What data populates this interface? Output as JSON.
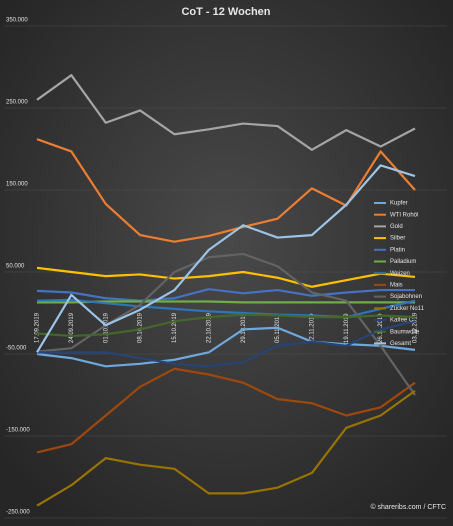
{
  "chart_data": {
    "type": "line",
    "title": "CoT - 12 Wochen",
    "source": "© shareribs.com / CFTC",
    "categories": [
      "17.09.2019",
      "24.09.2019",
      "01.10.2019",
      "08.10.2019",
      "15.10.2019",
      "22.10.2019",
      "29.10.2019",
      "05.11.2019",
      "12.11.2019",
      "19.11.2019",
      "26.11.2019",
      "03.12.2019"
    ],
    "ylim": [
      -250000,
      350000
    ],
    "yticks": [
      {
        "value": -250000,
        "label": "-250.000"
      },
      {
        "value": -150000,
        "label": "-150.000"
      },
      {
        "value": -50000,
        "label": "-50.000"
      },
      {
        "value": 50000,
        "label": "50.000"
      },
      {
        "value": 150000,
        "label": "150.000"
      },
      {
        "value": 250000,
        "label": "250.000"
      },
      {
        "value": 350000,
        "label": "350.000"
      }
    ],
    "grid": true,
    "legend": "right",
    "series": [
      {
        "name": "Kupfer",
        "color": "#6fa8dc",
        "values": [
          -50000,
          -55000,
          -65000,
          -62000,
          -57000,
          -48000,
          -20000,
          -18000,
          -35000,
          -38000,
          -40000,
          -45000
        ]
      },
      {
        "name": "WTI Rohöl",
        "color": "#ed7d31",
        "values": [
          212000,
          197000,
          133000,
          95000,
          87000,
          94000,
          105000,
          115000,
          152000,
          131000,
          197000,
          150000
        ]
      },
      {
        "name": "Gold",
        "color": "#a5a5a5",
        "values": [
          260000,
          290000,
          232000,
          247000,
          218000,
          224000,
          231000,
          228000,
          199000,
          223000,
          203000,
          225000
        ]
      },
      {
        "name": "Silber",
        "color": "#ffc000",
        "values": [
          55000,
          50000,
          45000,
          47000,
          42000,
          45000,
          50000,
          43000,
          32000,
          40000,
          48000,
          44000
        ]
      },
      {
        "name": "Platin",
        "color": "#4472c4",
        "values": [
          27000,
          25000,
          18000,
          15000,
          18000,
          29000,
          24000,
          28000,
          21000,
          25000,
          28000,
          28000
        ]
      },
      {
        "name": "Palladium",
        "color": "#70ad47",
        "values": [
          13000,
          13000,
          14000,
          14000,
          14000,
          14000,
          13000,
          13000,
          13000,
          13000,
          13000,
          13000
        ]
      },
      {
        "name": "Weizen",
        "color": "#2e75b6",
        "values": [
          15000,
          16000,
          12000,
          8000,
          5000,
          2000,
          0,
          -2000,
          -3000,
          -5000,
          5000,
          15000
        ]
      },
      {
        "name": "Mais",
        "color": "#9e480e",
        "values": [
          -170000,
          -160000,
          -125000,
          -90000,
          -68000,
          -75000,
          -85000,
          -105000,
          -110000,
          -125000,
          -115000,
          -85000
        ]
      },
      {
        "name": "Sojabohnen",
        "color": "#636363",
        "values": [
          -47000,
          -43000,
          -15000,
          10000,
          50000,
          68000,
          72000,
          57000,
          25000,
          15000,
          -40000,
          -100000
        ]
      },
      {
        "name": "Zucker No11",
        "color": "#997300",
        "values": [
          -235000,
          -210000,
          -177000,
          -185000,
          -190000,
          -220000,
          -220000,
          -213000,
          -195000,
          -140000,
          -125000,
          -95000
        ]
      },
      {
        "name": "Kaffee C",
        "color": "#264478",
        "values": [
          -48000,
          -48000,
          -48000,
          -55000,
          -62000,
          -65000,
          -60000,
          -40000,
          -35000,
          -40000,
          -20000,
          -10000
        ]
      },
      {
        "name": "Baumwolle",
        "color": "#43682b",
        "values": [
          -25000,
          -28000,
          -26000,
          -20000,
          -10000,
          -5000,
          -2000,
          -3000,
          -5000,
          -5000,
          -3000,
          -5000
        ]
      },
      {
        "name": "Gesamt",
        "color": "#9dc3e6",
        "values": [
          -48000,
          22000,
          -15000,
          4000,
          28000,
          77000,
          107000,
          92000,
          95000,
          132000,
          180000,
          167000
        ]
      }
    ]
  }
}
